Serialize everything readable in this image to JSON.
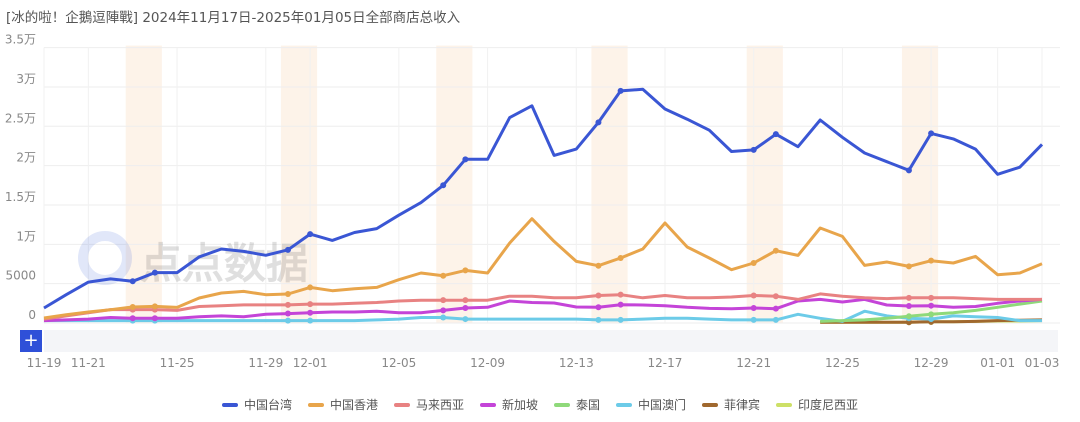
{
  "chart_data": {
    "type": "line",
    "title": "[冰的啦！企鵝逗陣戰] 2024年11月17日-2025年01月05日全部商店总收入",
    "xlabel": "",
    "ylabel": "",
    "ylim": [
      0,
      35000
    ],
    "y_ticks": [
      "0",
      "5000",
      "1万",
      "1.5万",
      "2万",
      "2.5万",
      "3万",
      "3.5万"
    ],
    "y_tick_values": [
      0,
      5000,
      10000,
      15000,
      20000,
      25000,
      30000,
      35000
    ],
    "grid": true,
    "legend_position": "bottom",
    "categories": [
      "11-19",
      "11-20",
      "11-21",
      "11-22",
      "11-23",
      "11-24",
      "11-25",
      "11-26",
      "11-27",
      "11-28",
      "11-29",
      "11-30",
      "12-01",
      "12-02",
      "12-03",
      "12-04",
      "12-05",
      "12-06",
      "12-07",
      "12-08",
      "12-09",
      "12-10",
      "12-11",
      "12-12",
      "12-13",
      "12-14",
      "12-15",
      "12-16",
      "12-17",
      "12-18",
      "12-19",
      "12-20",
      "12-21",
      "12-22",
      "12-23",
      "12-24",
      "12-25",
      "12-26",
      "12-27",
      "12-28",
      "12-29",
      "12-30",
      "12-31",
      "01-01",
      "01-02",
      "01-03"
    ],
    "x_ticks": [
      "11-19",
      "11-21",
      "11-25",
      "11-29",
      "12-01",
      "12-05",
      "12-09",
      "12-13",
      "12-17",
      "12-21",
      "12-25",
      "12-29",
      "01-01",
      "01-03"
    ],
    "weekend_highlights": [
      [
        "11-23",
        "11-24"
      ],
      [
        "11-30",
        "12-01"
      ],
      [
        "12-07",
        "12-08"
      ],
      [
        "12-14",
        "12-15"
      ],
      [
        "12-21",
        "12-22"
      ],
      [
        "12-28",
        "12-29"
      ]
    ],
    "series": [
      {
        "name": "中国台湾",
        "color": "#3a56d4",
        "values": [
          1900,
          3600,
          5200,
          5600,
          5300,
          6400,
          6400,
          8400,
          9400,
          9100,
          8600,
          9300,
          11300,
          10500,
          11500,
          12000,
          13700,
          15300,
          17500,
          20800,
          20800,
          26100,
          27600,
          21300,
          22100,
          25500,
          29500,
          29700,
          27200,
          25900,
          24500,
          21800,
          22000,
          24000,
          22400,
          25800,
          23600,
          21600,
          20500,
          19400,
          24100,
          23400,
          22100,
          18900,
          19800,
          22700
        ]
      },
      {
        "name": "中国香港",
        "color": "#e8a54b",
        "values": [
          640,
          1050,
          1400,
          1690,
          2030,
          2110,
          1980,
          3180,
          3810,
          4020,
          3600,
          3690,
          4520,
          4100,
          4360,
          4530,
          5500,
          6350,
          6010,
          6690,
          6350,
          10170,
          13260,
          10370,
          7830,
          7280,
          8260,
          9400,
          12710,
          9660,
          8260,
          6770,
          7620,
          9190,
          8590,
          12070,
          11010,
          7320,
          7750,
          7190,
          7920,
          7620,
          8470,
          6140,
          6350,
          7540
        ]
      },
      {
        "name": "马来西亚",
        "color": "#e88282",
        "values": [
          500,
          900,
          1300,
          1700,
          1700,
          1700,
          1600,
          2100,
          2200,
          2300,
          2300,
          2300,
          2400,
          2400,
          2500,
          2600,
          2800,
          2900,
          2900,
          2900,
          2900,
          3400,
          3400,
          3200,
          3200,
          3500,
          3600,
          3200,
          3500,
          3200,
          3200,
          3300,
          3500,
          3400,
          3000,
          3700,
          3400,
          3200,
          3100,
          3200,
          3200,
          3200,
          3100,
          3000,
          3000,
          3000
        ]
      },
      {
        "name": "新加坡",
        "color": "#c444d8",
        "values": [
          300,
          400,
          500,
          700,
          600,
          600,
          600,
          800,
          900,
          800,
          1100,
          1200,
          1300,
          1400,
          1400,
          1500,
          1300,
          1300,
          1600,
          1900,
          2000,
          2800,
          2600,
          2540,
          2030,
          2000,
          2330,
          2290,
          2200,
          2000,
          1860,
          1820,
          1900,
          1820,
          2800,
          3000,
          2670,
          3000,
          2290,
          2160,
          2200,
          2000,
          2100,
          2500,
          2800,
          3000
        ]
      },
      {
        "name": "泰国",
        "color": "#8fd97a",
        "values": [
          null,
          null,
          null,
          null,
          null,
          null,
          null,
          null,
          null,
          null,
          null,
          null,
          null,
          null,
          null,
          null,
          null,
          null,
          null,
          null,
          null,
          null,
          null,
          null,
          null,
          null,
          null,
          null,
          null,
          null,
          null,
          null,
          null,
          null,
          null,
          200,
          300,
          400,
          600,
          850,
          1100,
          1300,
          1600,
          2000,
          2400,
          2800
        ]
      },
      {
        "name": "中国澳门",
        "color": "#6ccbe8",
        "values": [
          300,
          300,
          300,
          300,
          300,
          300,
          300,
          300,
          300,
          300,
          300,
          300,
          300,
          300,
          300,
          400,
          500,
          700,
          700,
          500,
          500,
          500,
          500,
          500,
          500,
          400,
          400,
          500,
          600,
          600,
          500,
          400,
          400,
          400,
          1100,
          600,
          200,
          1500,
          900,
          600,
          500,
          900,
          800,
          700,
          300,
          300
        ]
      },
      {
        "name": "菲律宾",
        "color": "#a0682e",
        "values": [
          null,
          null,
          null,
          null,
          null,
          null,
          null,
          null,
          null,
          null,
          null,
          null,
          null,
          null,
          null,
          null,
          null,
          null,
          null,
          null,
          null,
          null,
          null,
          null,
          null,
          null,
          null,
          null,
          null,
          null,
          null,
          null,
          null,
          null,
          null,
          100,
          100,
          100,
          100,
          100,
          150,
          150,
          200,
          300,
          350,
          400
        ]
      },
      {
        "name": "印度尼西亚",
        "color": "#cde067",
        "values": [
          null,
          null,
          null,
          null,
          null,
          null,
          null,
          null,
          null,
          null,
          null,
          null,
          null,
          null,
          null,
          null,
          null,
          null,
          null,
          null,
          null,
          null,
          null,
          null,
          null,
          null,
          null,
          null,
          null,
          null,
          null,
          null,
          null,
          null,
          null,
          100,
          100,
          100,
          100,
          100,
          150,
          150,
          200,
          250,
          250,
          300
        ]
      }
    ],
    "watermark": "点点数据"
  },
  "zoom_control": {
    "label": "+"
  }
}
